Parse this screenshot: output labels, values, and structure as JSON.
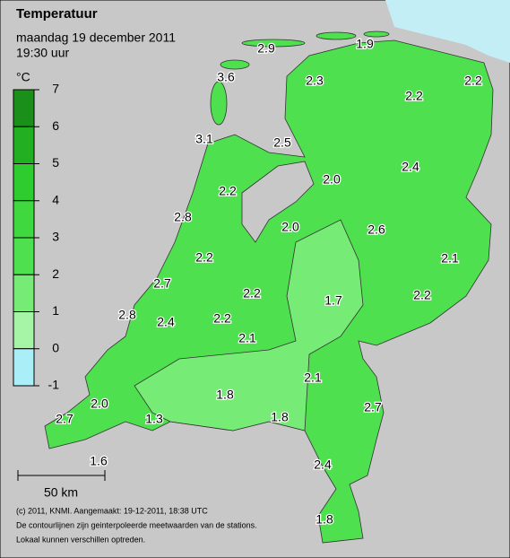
{
  "title": "Temperatuur",
  "date": "maandag 19 december 2011",
  "time": "19:30 uur",
  "legend": {
    "unit": "°C",
    "ticks": [
      7,
      6,
      5,
      4,
      3,
      2,
      1,
      0,
      -1
    ],
    "colors": [
      "#1a8f1a",
      "#22b022",
      "#2ecc2e",
      "#3fd93f",
      "#4ee04e",
      "#76ec76",
      "#a6f4a6",
      "#aaeef8"
    ]
  },
  "stations": [
    "2.9",
    "1.9",
    "3.6",
    "2.3",
    "2.2",
    "2.2",
    "3.1",
    "2.5",
    "2.4",
    "2.0",
    "2.2",
    "2.8",
    "2.0",
    "2.6",
    "2.2",
    "2.1",
    "2.7",
    "2.2",
    "1.7",
    "2.2",
    "2.8",
    "2.4",
    "2.2",
    "2.1",
    "2.1",
    "1.8",
    "2.0",
    "2.7",
    "1.8",
    "1.3",
    "2.7",
    "1.6",
    "2.4",
    "1.8"
  ],
  "scale": "50 km",
  "footer": [
    "(c) 2011, KNMI. Aangemaakt: 19-12-2011, 18:38 UTC",
    "De contourlijnen zijn geinterpoleerde meetwaarden van de stations.",
    "Lokaal kunnen verschillen optreden."
  ]
}
